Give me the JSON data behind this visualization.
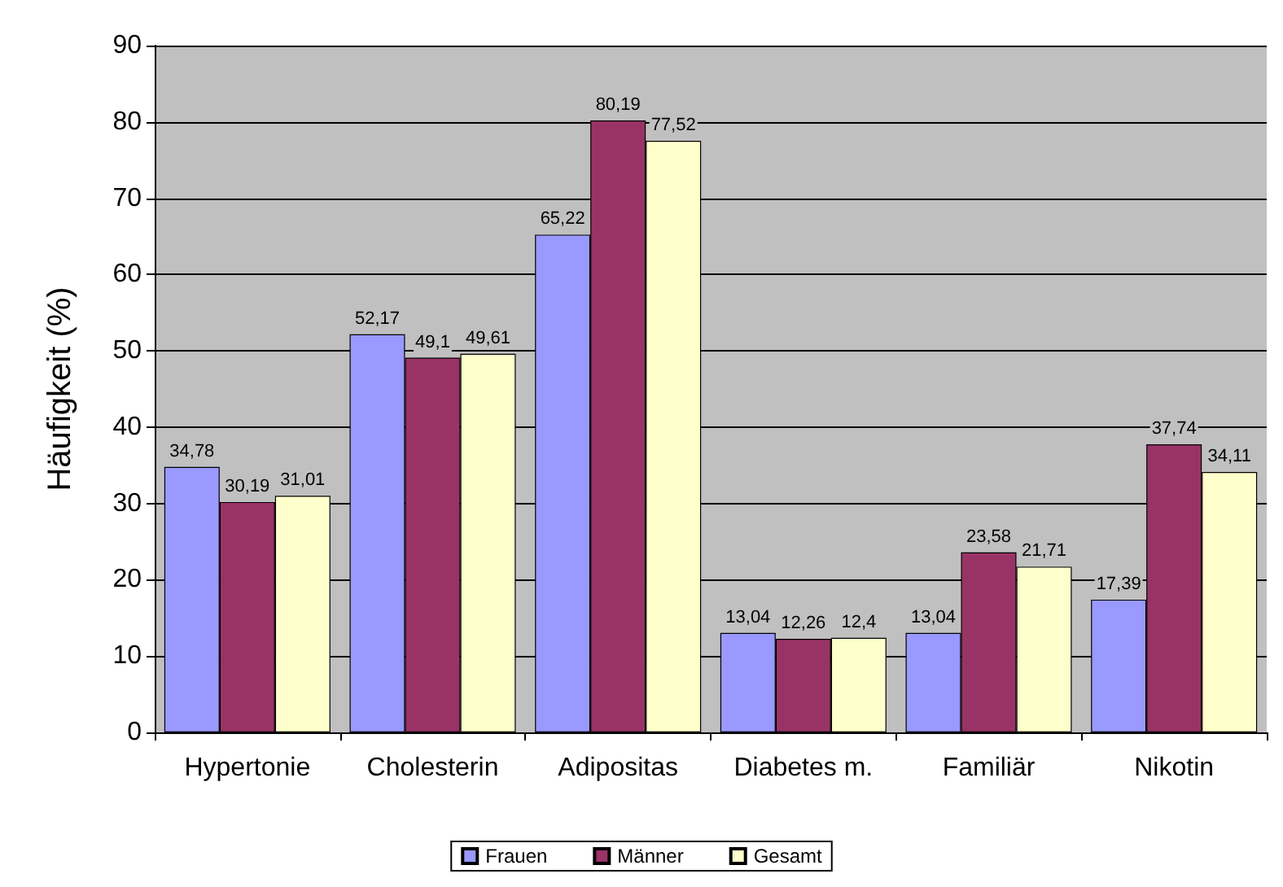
{
  "chart_data": {
    "type": "bar",
    "ylabel": "Häufigkeit (%)",
    "categories": [
      "Hypertonie",
      "Cholesterin",
      "Adipositas",
      "Diabetes m.",
      "Familiär",
      "Nikotin"
    ],
    "series": [
      {
        "name": "Frauen",
        "color": "#9999ff",
        "values": [
          34.78,
          52.17,
          65.22,
          13.04,
          13.04,
          17.39
        ],
        "value_labels": [
          "34,78",
          "52,17",
          "65,22",
          "13,04",
          "13,04",
          "17,39"
        ]
      },
      {
        "name": "Männer",
        "color": "#993366",
        "values": [
          30.19,
          49.1,
          80.19,
          12.26,
          23.58,
          37.74
        ],
        "value_labels": [
          "30,19",
          "49,1",
          "80,19",
          "12,26",
          "23,58",
          "37,74"
        ]
      },
      {
        "name": "Gesamt",
        "color": "#ffffcc",
        "values": [
          31.01,
          49.61,
          77.52,
          12.4,
          21.71,
          34.11
        ],
        "value_labels": [
          "31,01",
          "49,61",
          "77,52",
          "12,4",
          "21,71",
          "34,11"
        ]
      }
    ],
    "ylim": [
      0,
      90
    ],
    "yticks": [
      0,
      10,
      20,
      30,
      40,
      50,
      60,
      70,
      80,
      90
    ],
    "grid": "y",
    "legend": "bottom"
  }
}
